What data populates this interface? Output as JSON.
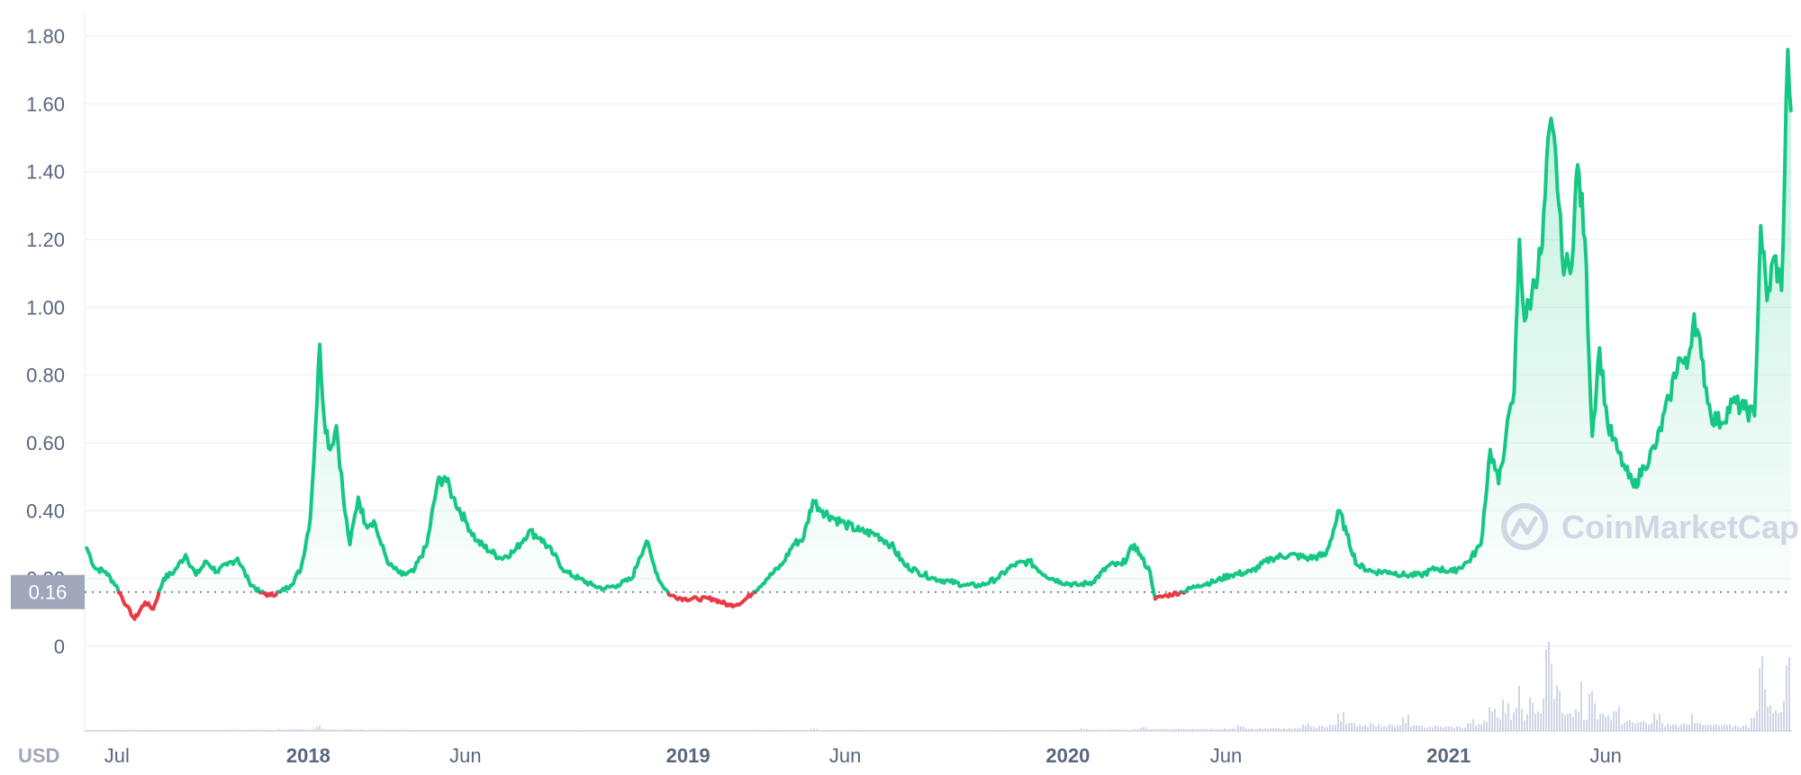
{
  "currency_label": "USD",
  "watermark": "CoinMarketCap",
  "current_price_label": "0.16",
  "colors": {
    "up": "#16c784",
    "down": "#ea3943",
    "grid": "#eff2f5",
    "axis_text": "#58667e",
    "volume": "#cfd6e4",
    "price_label_bg": "#a1a7bb"
  },
  "chart_data": {
    "type": "line",
    "title": "",
    "xlabel": "",
    "ylabel": "",
    "ylim": [
      0,
      1.8
    ],
    "yticks": [
      "0",
      "0.20",
      "0.40",
      "0.60",
      "0.80",
      "1.00",
      "1.20",
      "1.40",
      "1.60",
      "1.80"
    ],
    "xticks": [
      {
        "label": "Jul",
        "date": "2017-07-01",
        "year": false
      },
      {
        "label": "2018",
        "date": "2018-01-01",
        "year": true
      },
      {
        "label": "Jun",
        "date": "2018-06-01",
        "year": false
      },
      {
        "label": "2019",
        "date": "2019-01-01",
        "year": true
      },
      {
        "label": "Jun",
        "date": "2019-06-01",
        "year": false
      },
      {
        "label": "2020",
        "date": "2020-01-01",
        "year": true
      },
      {
        "label": "Jun",
        "date": "2020-06-01",
        "year": false
      },
      {
        "label": "2021",
        "date": "2021-01-01",
        "year": true
      },
      {
        "label": "Jun",
        "date": "2021-06-01",
        "year": false
      }
    ],
    "grid": true,
    "baseline_price": 0.16,
    "series": [
      {
        "values": [
          [
            "2017-06-02",
            0.29
          ],
          [
            "2017-06-10",
            0.23
          ],
          [
            "2017-06-20",
            0.22
          ],
          [
            "2017-06-30",
            0.18
          ],
          [
            "2017-07-10",
            0.12
          ],
          [
            "2017-07-18",
            0.08
          ],
          [
            "2017-07-28",
            0.13
          ],
          [
            "2017-08-05",
            0.11
          ],
          [
            "2017-08-15",
            0.2
          ],
          [
            "2017-08-25",
            0.22
          ],
          [
            "2017-09-05",
            0.27
          ],
          [
            "2017-09-15",
            0.21
          ],
          [
            "2017-09-25",
            0.25
          ],
          [
            "2017-10-05",
            0.22
          ],
          [
            "2017-10-15",
            0.24
          ],
          [
            "2017-10-25",
            0.26
          ],
          [
            "2017-11-05",
            0.19
          ],
          [
            "2017-11-15",
            0.16
          ],
          [
            "2017-11-25",
            0.15
          ],
          [
            "2017-12-05",
            0.16
          ],
          [
            "2017-12-15",
            0.18
          ],
          [
            "2017-12-25",
            0.23
          ],
          [
            "2018-01-03",
            0.38
          ],
          [
            "2018-01-08",
            0.65
          ],
          [
            "2018-01-12",
            0.89
          ],
          [
            "2018-01-16",
            0.68
          ],
          [
            "2018-01-22",
            0.58
          ],
          [
            "2018-01-28",
            0.65
          ],
          [
            "2018-02-05",
            0.4
          ],
          [
            "2018-02-10",
            0.3
          ],
          [
            "2018-02-18",
            0.44
          ],
          [
            "2018-02-25",
            0.36
          ],
          [
            "2018-03-05",
            0.37
          ],
          [
            "2018-03-12",
            0.3
          ],
          [
            "2018-03-20",
            0.24
          ],
          [
            "2018-04-01",
            0.21
          ],
          [
            "2018-04-12",
            0.22
          ],
          [
            "2018-04-25",
            0.3
          ],
          [
            "2018-05-05",
            0.48
          ],
          [
            "2018-05-12",
            0.5
          ],
          [
            "2018-05-20",
            0.44
          ],
          [
            "2018-06-01",
            0.37
          ],
          [
            "2018-06-12",
            0.31
          ],
          [
            "2018-06-25",
            0.28
          ],
          [
            "2018-07-05",
            0.26
          ],
          [
            "2018-07-18",
            0.28
          ],
          [
            "2018-08-01",
            0.34
          ],
          [
            "2018-08-12",
            0.32
          ],
          [
            "2018-08-25",
            0.27
          ],
          [
            "2018-09-05",
            0.22
          ],
          [
            "2018-09-18",
            0.2
          ],
          [
            "2018-10-01",
            0.18
          ],
          [
            "2018-10-12",
            0.17
          ],
          [
            "2018-10-25",
            0.18
          ],
          [
            "2018-11-08",
            0.2
          ],
          [
            "2018-11-15",
            0.26
          ],
          [
            "2018-11-22",
            0.31
          ],
          [
            "2018-11-28",
            0.25
          ],
          [
            "2018-12-05",
            0.19
          ],
          [
            "2018-12-15",
            0.15
          ],
          [
            "2018-12-28",
            0.14
          ],
          [
            "2019-01-10",
            0.14
          ],
          [
            "2019-01-25",
            0.14
          ],
          [
            "2019-02-10",
            0.12
          ],
          [
            "2019-02-22",
            0.13
          ],
          [
            "2019-03-05",
            0.16
          ],
          [
            "2019-03-18",
            0.2
          ],
          [
            "2019-04-01",
            0.24
          ],
          [
            "2019-04-12",
            0.3
          ],
          [
            "2019-04-22",
            0.32
          ],
          [
            "2019-05-01",
            0.43
          ],
          [
            "2019-05-10",
            0.4
          ],
          [
            "2019-05-20",
            0.38
          ],
          [
            "2019-06-01",
            0.36
          ],
          [
            "2019-06-15",
            0.34
          ],
          [
            "2019-07-01",
            0.33
          ],
          [
            "2019-07-15",
            0.3
          ],
          [
            "2019-07-28",
            0.24
          ],
          [
            "2019-08-10",
            0.22
          ],
          [
            "2019-08-25",
            0.2
          ],
          [
            "2019-09-10",
            0.19
          ],
          [
            "2019-09-25",
            0.18
          ],
          [
            "2019-10-10",
            0.18
          ],
          [
            "2019-10-25",
            0.2
          ],
          [
            "2019-11-10",
            0.24
          ],
          [
            "2019-11-25",
            0.25
          ],
          [
            "2019-12-10",
            0.21
          ],
          [
            "2019-12-25",
            0.19
          ],
          [
            "2020-01-10",
            0.18
          ],
          [
            "2020-01-25",
            0.19
          ],
          [
            "2020-02-10",
            0.24
          ],
          [
            "2020-02-22",
            0.24
          ],
          [
            "2020-03-05",
            0.3
          ],
          [
            "2020-03-12",
            0.26
          ],
          [
            "2020-03-20",
            0.22
          ],
          [
            "2020-03-25",
            0.14
          ],
          [
            "2020-04-05",
            0.15
          ],
          [
            "2020-04-20",
            0.16
          ],
          [
            "2020-05-05",
            0.18
          ],
          [
            "2020-05-20",
            0.19
          ],
          [
            "2020-06-05",
            0.21
          ],
          [
            "2020-06-25",
            0.22
          ],
          [
            "2020-07-15",
            0.26
          ],
          [
            "2020-08-01",
            0.27
          ],
          [
            "2020-08-20",
            0.26
          ],
          [
            "2020-09-05",
            0.27
          ],
          [
            "2020-09-18",
            0.4
          ],
          [
            "2020-09-25",
            0.33
          ],
          [
            "2020-10-05",
            0.24
          ],
          [
            "2020-10-20",
            0.22
          ],
          [
            "2020-11-05",
            0.22
          ],
          [
            "2020-11-20",
            0.21
          ],
          [
            "2020-12-05",
            0.21
          ],
          [
            "2020-12-20",
            0.23
          ],
          [
            "2021-01-05",
            0.22
          ],
          [
            "2021-01-20",
            0.25
          ],
          [
            "2021-02-01",
            0.3
          ],
          [
            "2021-02-10",
            0.58
          ],
          [
            "2021-02-18",
            0.48
          ],
          [
            "2021-02-25",
            0.62
          ],
          [
            "2021-03-05",
            0.75
          ],
          [
            "2021-03-10",
            1.2
          ],
          [
            "2021-03-15",
            0.96
          ],
          [
            "2021-03-22",
            1.04
          ],
          [
            "2021-04-01",
            1.18
          ],
          [
            "2021-04-08",
            1.53
          ],
          [
            "2021-04-14",
            1.45
          ],
          [
            "2021-04-20",
            1.15
          ],
          [
            "2021-04-28",
            1.1
          ],
          [
            "2021-05-05",
            1.42
          ],
          [
            "2021-05-12",
            1.2
          ],
          [
            "2021-05-19",
            0.62
          ],
          [
            "2021-05-26",
            0.88
          ],
          [
            "2021-06-03",
            0.65
          ],
          [
            "2021-06-12",
            0.58
          ],
          [
            "2021-06-20",
            0.52
          ],
          [
            "2021-06-28",
            0.47
          ],
          [
            "2021-07-08",
            0.53
          ],
          [
            "2021-07-20",
            0.6
          ],
          [
            "2021-08-01",
            0.73
          ],
          [
            "2021-08-10",
            0.85
          ],
          [
            "2021-08-18",
            0.82
          ],
          [
            "2021-08-25",
            0.98
          ],
          [
            "2021-09-01",
            0.85
          ],
          [
            "2021-09-10",
            0.68
          ],
          [
            "2021-09-20",
            0.66
          ],
          [
            "2021-10-01",
            0.72
          ],
          [
            "2021-10-12",
            0.7
          ],
          [
            "2021-10-22",
            0.68
          ],
          [
            "2021-10-28",
            1.24
          ],
          [
            "2021-11-03",
            1.02
          ],
          [
            "2021-11-10",
            1.15
          ],
          [
            "2021-11-17",
            1.05
          ],
          [
            "2021-11-23",
            1.76
          ],
          [
            "2021-11-26",
            1.58
          ]
        ]
      }
    ],
    "volume": {
      "type": "bar",
      "values": [
        [
          "2017-08-01",
          0.01
        ],
        [
          "2018-01-12",
          0.05
        ],
        [
          "2018-06-01",
          0.01
        ],
        [
          "2019-05-01",
          0.03
        ],
        [
          "2019-06-10",
          0.02
        ],
        [
          "2020-01-15",
          0.03
        ],
        [
          "2020-03-12",
          0.05
        ],
        [
          "2020-06-15",
          0.06
        ],
        [
          "2020-08-15",
          0.08
        ],
        [
          "2020-09-18",
          0.22
        ],
        [
          "2020-11-20",
          0.15
        ],
        [
          "2021-01-20",
          0.12
        ],
        [
          "2021-02-10",
          0.34
        ],
        [
          "2021-02-25",
          0.4
        ],
        [
          "2021-03-10",
          0.5
        ],
        [
          "2021-03-20",
          0.4
        ],
        [
          "2021-04-06",
          0.98
        ],
        [
          "2021-04-15",
          0.55
        ],
        [
          "2021-05-05",
          0.45
        ],
        [
          "2021-05-19",
          0.55
        ],
        [
          "2021-06-10",
          0.3
        ],
        [
          "2021-07-20",
          0.2
        ],
        [
          "2021-08-25",
          0.18
        ],
        [
          "2021-10-20",
          0.15
        ],
        [
          "2021-10-28",
          0.92
        ],
        [
          "2021-11-05",
          0.4
        ],
        [
          "2021-11-23",
          0.85
        ],
        [
          "2021-11-26",
          0.55
        ]
      ]
    }
  }
}
